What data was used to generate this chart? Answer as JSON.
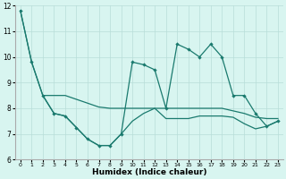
{
  "xlabel": "Humidex (Indice chaleur)",
  "x": [
    0,
    1,
    2,
    3,
    4,
    5,
    6,
    7,
    8,
    9,
    10,
    11,
    12,
    13,
    14,
    15,
    16,
    17,
    18,
    19,
    20,
    21,
    22,
    23
  ],
  "line1_y": [
    11.8,
    9.8,
    8.5,
    7.8,
    7.7,
    7.25,
    6.8,
    6.55,
    6.55,
    7.0,
    9.8,
    9.7,
    9.5,
    8.0,
    10.5,
    10.3,
    10.0,
    10.5,
    10.0,
    8.5,
    8.5,
    7.8,
    7.3,
    7.5
  ],
  "line2_x": [
    0,
    1,
    2,
    3,
    4,
    5,
    6,
    7,
    8,
    9,
    10,
    11,
    12,
    13,
    14,
    15,
    16,
    17,
    18,
    19,
    20,
    21,
    22,
    23
  ],
  "line2_y": [
    11.8,
    9.8,
    8.5,
    8.5,
    8.5,
    8.35,
    8.2,
    8.05,
    8.0,
    8.0,
    8.0,
    8.0,
    8.0,
    8.0,
    8.0,
    8.0,
    8.0,
    8.0,
    8.0,
    7.9,
    7.8,
    7.65,
    7.6,
    7.6
  ],
  "line3_x": [
    2,
    3,
    4,
    5,
    6,
    7,
    8,
    9,
    10,
    11,
    12,
    13,
    14,
    15,
    16,
    17,
    18,
    19,
    20,
    21,
    22,
    23
  ],
  "line3_y": [
    8.5,
    7.8,
    7.7,
    7.25,
    6.8,
    6.55,
    6.55,
    7.0,
    7.5,
    7.8,
    8.0,
    7.6,
    7.6,
    7.6,
    7.7,
    7.7,
    7.7,
    7.65,
    7.4,
    7.2,
    7.3,
    7.5
  ],
  "ylim": [
    6,
    12
  ],
  "yticks": [
    6,
    7,
    8,
    9,
    10,
    11,
    12
  ],
  "line_color": "#1a7a6e",
  "bg_color": "#d8f5f0",
  "grid_color": "#b8ddd8"
}
